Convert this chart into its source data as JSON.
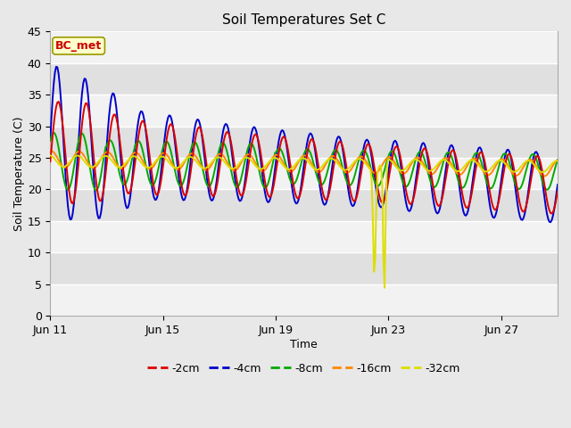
{
  "title": "Soil Temperatures Set C",
  "xlabel": "Time",
  "ylabel": "Soil Temperature (C)",
  "ylim": [
    0,
    45
  ],
  "bg_color": "#e8e8e8",
  "annotation_text": "BC_met",
  "annotation_color": "#cc0000",
  "annotation_bg": "#ffffcc",
  "annotation_border": "#999900",
  "series": {
    "depth_2cm": {
      "color": "#dd0000",
      "label": "-2cm",
      "linewidth": 1.4
    },
    "depth_4cm": {
      "color": "#0000cc",
      "label": "-4cm",
      "linewidth": 1.4
    },
    "depth_8cm": {
      "color": "#00aa00",
      "label": "-8cm",
      "linewidth": 1.4
    },
    "depth_16cm": {
      "color": "#ff8800",
      "label": "-16cm",
      "linewidth": 1.4
    },
    "depth_32cm": {
      "color": "#dddd00",
      "label": "-32cm",
      "linewidth": 1.4
    }
  },
  "xtick_labels": [
    "Jun 11",
    "Jun 15",
    "Jun 19",
    "Jun 23",
    "Jun 27"
  ],
  "xtick_positions": [
    0,
    4,
    8,
    12,
    16
  ],
  "ytick_positions": [
    0,
    5,
    10,
    15,
    20,
    25,
    30,
    35,
    40,
    45
  ],
  "band_colors": [
    "#f2f2f2",
    "#e0e0e0"
  ],
  "n_days": 18,
  "n_per_day": 24
}
